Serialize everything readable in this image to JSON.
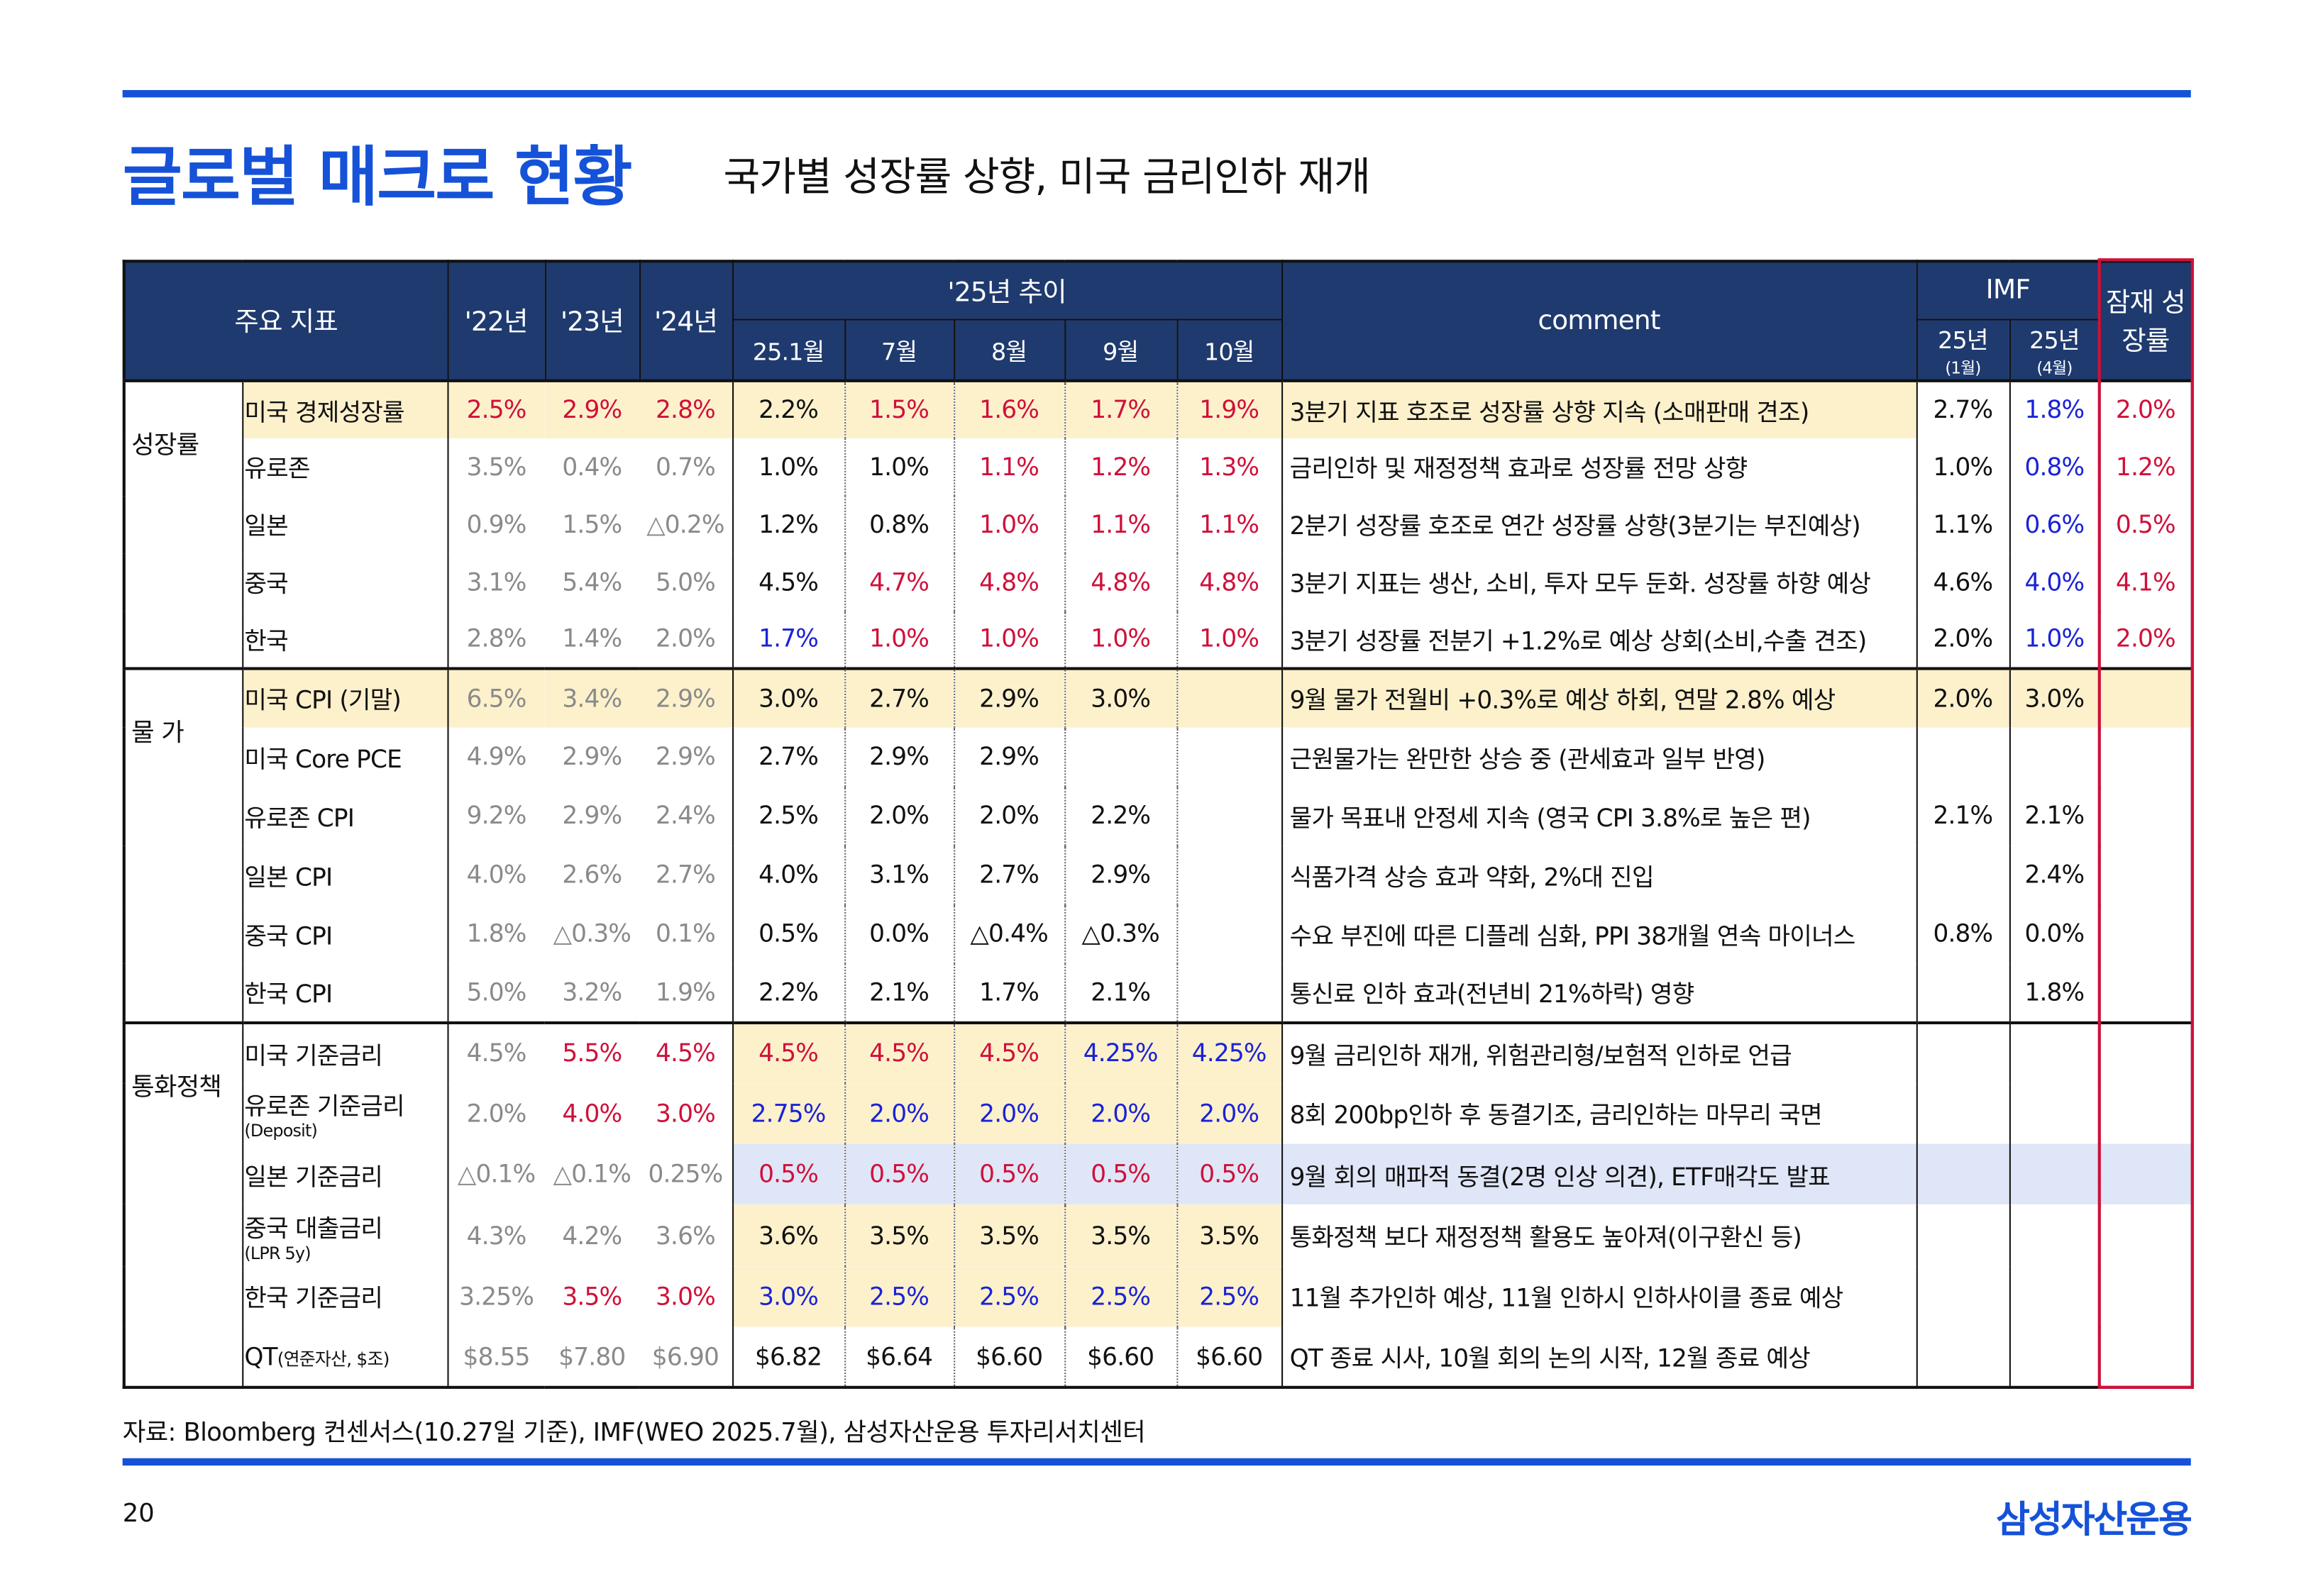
{
  "header": {
    "title": "글로벌 매크로 현황",
    "subtitle": "국가별 성장률 상향, 미국 금리인하 재개"
  },
  "table": {
    "columns": {
      "indicator": "주요 지표",
      "years": [
        "'22년",
        "'23년",
        "'24년"
      ],
      "trend": "'25년 추이",
      "months": [
        "25.1월",
        "7월",
        "8월",
        "9월",
        "10월"
      ],
      "comment": "comment",
      "imf": "IMF",
      "imf_cols": [
        {
          "year": "25년",
          "month": "(1월)"
        },
        {
          "year": "25년",
          "month": "(4월)"
        }
      ],
      "potential": "잠재 성장률"
    },
    "palette": {
      "black": "#111111",
      "gray": "#8a8a8a",
      "red": "#d0103a",
      "blue": "#1a22d8",
      "yellow": "#fdf1cc",
      "lightblue": "#dfe6f7"
    },
    "groups": [
      {
        "name": "성장률",
        "rows": [
          {
            "cells": [
              "미국 경제성장률",
              "2.5%",
              "2.9%",
              "2.8%",
              "2.2%",
              "1.5%",
              "1.6%",
              "1.7%",
              "1.9%",
              "3분기 지표 호조로 성장률 상향 지속 (소매판매 견조)",
              "2.7%",
              "1.8%",
              "2.0%"
            ],
            "colors": [
              "black",
              "red",
              "red",
              "red",
              "black",
              "red",
              "red",
              "red",
              "red",
              "black",
              "black",
              "blue",
              "red"
            ],
            "fills": [
              "yellow",
              "yellow",
              "yellow",
              "yellow",
              "yellow",
              "yellow",
              "yellow",
              "yellow",
              "yellow",
              "yellow",
              null,
              null,
              null
            ]
          },
          {
            "cells": [
              "유로존",
              "3.5%",
              "0.4%",
              "0.7%",
              "1.0%",
              "1.0%",
              "1.1%",
              "1.2%",
              "1.3%",
              "금리인하 및 재정정책 효과로 성장률 전망 상향",
              "1.0%",
              "0.8%",
              "1.2%"
            ],
            "colors": [
              "black",
              "gray",
              "gray",
              "gray",
              "black",
              "black",
              "red",
              "red",
              "red",
              "black",
              "black",
              "blue",
              "red"
            ]
          },
          {
            "cells": [
              "일본",
              "0.9%",
              "1.5%",
              "△0.2%",
              "1.2%",
              "0.8%",
              "1.0%",
              "1.1%",
              "1.1%",
              "2분기 성장률 호조로 연간 성장률 상향(3분기는 부진예상)",
              "1.1%",
              "0.6%",
              "0.5%"
            ],
            "colors": [
              "black",
              "gray",
              "gray",
              "gray",
              "black",
              "black",
              "red",
              "red",
              "red",
              "black",
              "black",
              "blue",
              "red"
            ]
          },
          {
            "cells": [
              "중국",
              "3.1%",
              "5.4%",
              "5.0%",
              "4.5%",
              "4.7%",
              "4.8%",
              "4.8%",
              "4.8%",
              "3분기 지표는 생산, 소비, 투자 모두 둔화. 성장률 하향 예상",
              "4.6%",
              "4.0%",
              "4.1%"
            ],
            "colors": [
              "black",
              "gray",
              "gray",
              "gray",
              "black",
              "red",
              "red",
              "red",
              "red",
              "black",
              "black",
              "blue",
              "red"
            ]
          },
          {
            "cells": [
              "한국",
              "2.8%",
              "1.4%",
              "2.0%",
              "1.7%",
              "1.0%",
              "1.0%",
              "1.0%",
              "1.0%",
              "3분기 성장률 전분기 +1.2%로 예상 상회(소비,수출 견조)",
              "2.0%",
              "1.0%",
              "2.0%"
            ],
            "colors": [
              "black",
              "gray",
              "gray",
              "gray",
              "blue",
              "red",
              "red",
              "red",
              "red",
              "black",
              "black",
              "blue",
              "red"
            ]
          }
        ]
      },
      {
        "name": "물 가",
        "rows": [
          {
            "cells": [
              "미국 CPI (기말)",
              "6.5%",
              "3.4%",
              "2.9%",
              "3.0%",
              "2.7%",
              "2.9%",
              "3.0%",
              null,
              "9월 물가 전월비 +0.3%로 예상 하회, 연말 2.8% 예상",
              "2.0%",
              "3.0%",
              null
            ],
            "colors": [
              "black",
              "gray",
              "gray",
              "gray",
              "black",
              "black",
              "black",
              "black",
              "black",
              "black",
              "black",
              "black",
              "black"
            ],
            "fills": [
              "yellow",
              "yellow",
              "yellow",
              "yellow",
              "yellow",
              "yellow",
              "yellow",
              "yellow",
              "yellow",
              "yellow",
              "yellow",
              "yellow",
              "yellow"
            ]
          },
          {
            "cells": [
              "미국 Core PCE",
              "4.9%",
              "2.9%",
              "2.9%",
              "2.7%",
              "2.9%",
              "2.9%",
              null,
              null,
              "근원물가는 완만한 상승 중 (관세효과 일부 반영)",
              null,
              null,
              null
            ],
            "colors": [
              "black",
              "gray",
              "gray",
              "gray",
              "black",
              "black",
              "black",
              "black",
              "black",
              "black",
              "black",
              "black",
              "black"
            ]
          },
          {
            "cells": [
              "유로존 CPI",
              "9.2%",
              "2.9%",
              "2.4%",
              "2.5%",
              "2.0%",
              "2.0%",
              "2.2%",
              null,
              "물가 목표내 안정세 지속 (영국 CPI 3.8%로 높은 편)",
              "2.1%",
              "2.1%",
              null
            ],
            "colors": [
              "black",
              "gray",
              "gray",
              "gray",
              "black",
              "black",
              "black",
              "black",
              "black",
              "black",
              "black",
              "black",
              "black"
            ]
          },
          {
            "cells": [
              "일본 CPI",
              "4.0%",
              "2.6%",
              "2.7%",
              "4.0%",
              "3.1%",
              "2.7%",
              "2.9%",
              null,
              "식품가격 상승 효과 약화, 2%대 진입",
              null,
              "2.4%",
              null
            ],
            "colors": [
              "black",
              "gray",
              "gray",
              "gray",
              "black",
              "black",
              "black",
              "black",
              "black",
              "black",
              "black",
              "black",
              "black"
            ]
          },
          {
            "cells": [
              "중국 CPI",
              "1.8%",
              "△0.3%",
              "0.1%",
              "0.5%",
              "0.0%",
              "△0.4%",
              "△0.3%",
              null,
              "수요 부진에 따른 디플레 심화, PPI 38개월 연속 마이너스",
              "0.8%",
              "0.0%",
              null
            ],
            "colors": [
              "black",
              "gray",
              "gray",
              "gray",
              "black",
              "black",
              "black",
              "black",
              "black",
              "black",
              "black",
              "black",
              "black"
            ]
          },
          {
            "cells": [
              "한국 CPI",
              "5.0%",
              "3.2%",
              "1.9%",
              "2.2%",
              "2.1%",
              "1.7%",
              "2.1%",
              null,
              "통신료 인하 효과(전년비 21%하락) 영향",
              null,
              "1.8%",
              null
            ],
            "colors": [
              "black",
              "gray",
              "gray",
              "gray",
              "black",
              "black",
              "black",
              "black",
              "black",
              "black",
              "black",
              "black",
              "black"
            ]
          }
        ]
      },
      {
        "name": "통화정책",
        "rows": [
          {
            "cells": [
              "미국 기준금리",
              "4.5%",
              "5.5%",
              "4.5%",
              "4.5%",
              "4.5%",
              "4.5%",
              "4.25%",
              "4.25%",
              "9월 금리인하 재개, 위험관리형/보험적 인하로 언급",
              null,
              null,
              null
            ],
            "colors": [
              "black",
              "gray",
              "red",
              "red",
              "red",
              "red",
              "red",
              "blue",
              "blue",
              "black",
              "black",
              "black",
              "black"
            ],
            "fills": [
              null,
              null,
              null,
              null,
              "yellow",
              "yellow",
              "yellow",
              "yellow",
              "yellow",
              null,
              null,
              null,
              null
            ]
          },
          {
            "cells": [
              "유로존 기준금리",
              "2.0%",
              "4.0%",
              "3.0%",
              "2.75%",
              "2.0%",
              "2.0%",
              "2.0%",
              "2.0%",
              "8회 200bp인하 후 동결기조, 금리인하는 마무리 국면",
              null,
              null,
              null
            ],
            "note": "(Deposit)",
            "colors": [
              "black",
              "gray",
              "red",
              "red",
              "blue",
              "blue",
              "blue",
              "blue",
              "blue",
              "black",
              "black",
              "black",
              "black"
            ],
            "fills": [
              null,
              null,
              null,
              null,
              "yellow",
              "yellow",
              "yellow",
              "yellow",
              "yellow",
              null,
              null,
              null,
              null
            ]
          },
          {
            "cells": [
              "일본 기준금리",
              "△0.1%",
              "△0.1%",
              "0.25%",
              "0.5%",
              "0.5%",
              "0.5%",
              "0.5%",
              "0.5%",
              "9월 회의 매파적 동결(2명 인상 의견), ETF매각도 발표",
              null,
              null,
              null
            ],
            "colors": [
              "black",
              "gray",
              "gray",
              "gray",
              "red",
              "red",
              "red",
              "red",
              "red",
              "black",
              "black",
              "black",
              "black"
            ],
            "fills": [
              null,
              null,
              null,
              null,
              "lightblue",
              "lightblue",
              "lightblue",
              "lightblue",
              "lightblue",
              "lightblue",
              "lightblue",
              "lightblue",
              "lightblue"
            ]
          },
          {
            "cells": [
              "중국 대출금리",
              "4.3%",
              "4.2%",
              "3.6%",
              "3.6%",
              "3.5%",
              "3.5%",
              "3.5%",
              "3.5%",
              "통화정책 보다 재정정책 활용도 높아져(이구환신 등)",
              null,
              null,
              null
            ],
            "note": "(LPR 5y)",
            "colors": [
              "black",
              "gray",
              "gray",
              "gray",
              "black",
              "black",
              "black",
              "black",
              "black",
              "black",
              "black",
              "black",
              "black"
            ],
            "fills": [
              null,
              null,
              null,
              null,
              "yellow",
              "yellow",
              "yellow",
              "yellow",
              "yellow",
              null,
              null,
              null,
              null
            ]
          },
          {
            "cells": [
              "한국 기준금리",
              "3.25%",
              "3.5%",
              "3.0%",
              "3.0%",
              "2.5%",
              "2.5%",
              "2.5%",
              "2.5%",
              "11월 추가인하 예상, 11월 인하시 인하사이클 종료 예상",
              null,
              null,
              null
            ],
            "colors": [
              "black",
              "gray",
              "red",
              "red",
              "blue",
              "blue",
              "blue",
              "blue",
              "blue",
              "black",
              "black",
              "black",
              "black"
            ],
            "fills": [
              null,
              null,
              null,
              null,
              "yellow",
              "yellow",
              "yellow",
              "yellow",
              "yellow",
              null,
              null,
              null,
              null
            ]
          },
          {
            "cells": [
              "QT",
              "$8.55",
              "$7.80",
              "$6.90",
              "$6.82",
              "$6.64",
              "$6.60",
              "$6.60",
              "$6.60",
              "QT 종료 시사, 10월 회의 논의 시작, 12월 종료 예상",
              null,
              null,
              null
            ],
            "inline_note": "(연준자산, $조)",
            "colors": [
              "black",
              "gray",
              "gray",
              "gray",
              "black",
              "black",
              "black",
              "black",
              "black",
              "black",
              "black",
              "black",
              "black"
            ]
          }
        ]
      }
    ]
  },
  "footer": {
    "source": "자료: Bloomberg 컨센서스(10.27일 기준), IMF(WEO 2025.7월), 삼성자산운용 투자리서치센터",
    "page": "20",
    "logo": "삼성자산운용"
  }
}
